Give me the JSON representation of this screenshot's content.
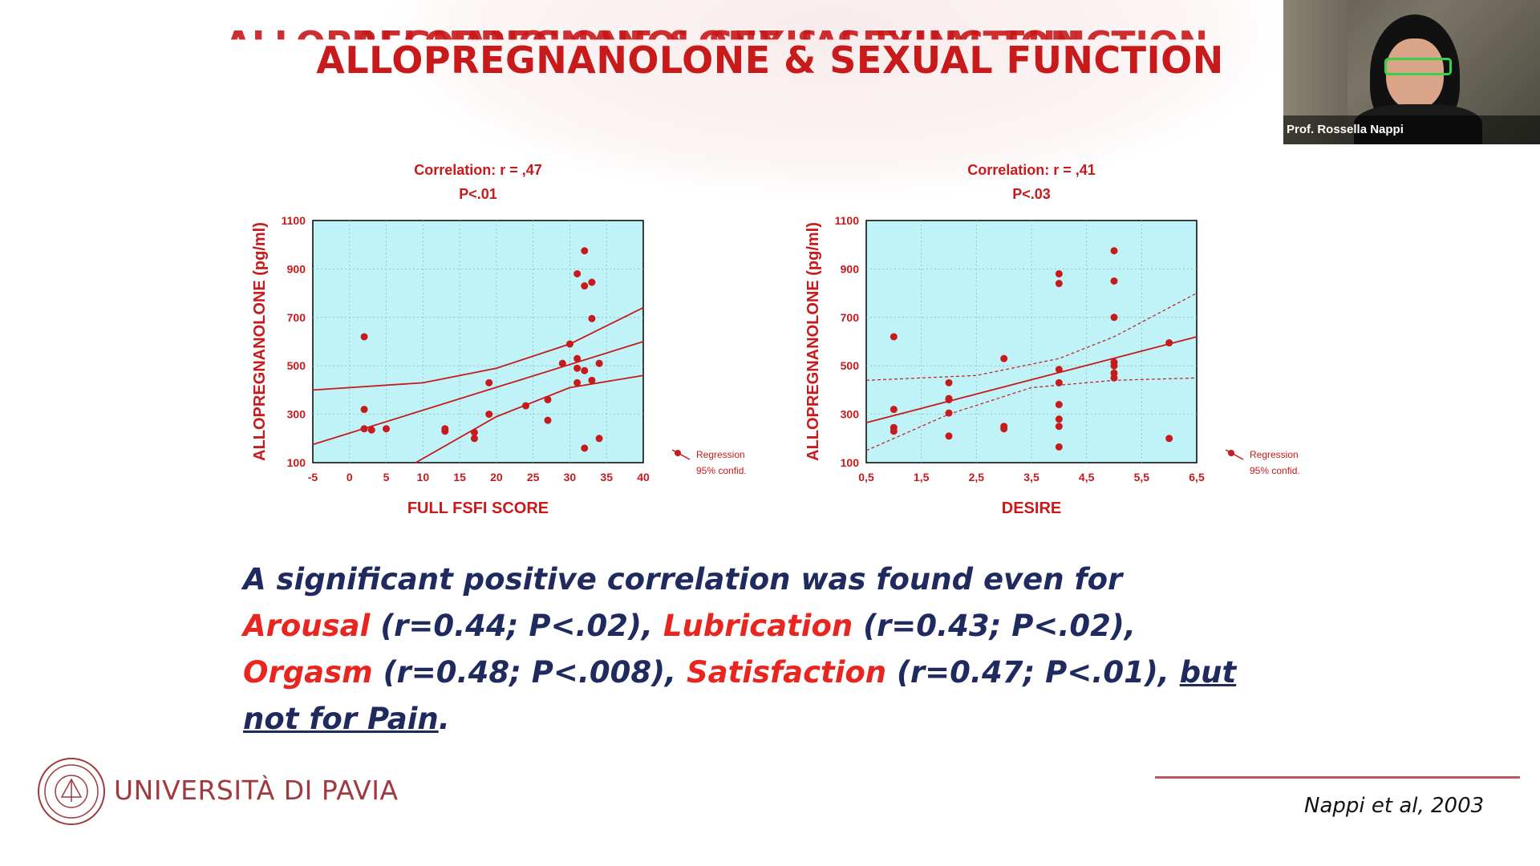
{
  "slide": {
    "title": "ALLOPREGNANOLONE & SEXUAL FUNCTION",
    "caption": {
      "p1": "A significant positive correlation was found even for ",
      "arousal": "Arousal",
      "p2": " (r=0.44; P<.02), ",
      "lubrication": "Lubrication",
      "p3": " (r=0.43; P<.02), ",
      "orgasm": "Orgasm",
      "p4": " (r=0.48; P<.008), ",
      "satisfaction": "Satisfaction",
      "p5": " (r=0.47; P<.01), ",
      "underlined": "but not for Pain",
      "p6": "."
    },
    "university": "UNIVERSITÀ DI PAVIA",
    "reference": "Nappi et al, 2003"
  },
  "video": {
    "participant_name": "Prof. Rossella Nappi"
  },
  "colors": {
    "accent": "#c8191b",
    "plot_bg": "#bff3f7",
    "caption_text": "#1f2a5e",
    "caption_highlight": "#e8251f"
  },
  "chart_data": [
    {
      "type": "scatter",
      "correlation": "Correlation: r = ,47",
      "p_value": "P<.01",
      "xlabel": "FULL FSFI SCORE",
      "ylabel": "ALLOPREGNANOLONE (pg/ml)",
      "xlim": [
        -5,
        40
      ],
      "ylim": [
        100,
        1100
      ],
      "x_ticks": [
        "-5",
        "0",
        "5",
        "10",
        "15",
        "20",
        "25",
        "30",
        "35",
        "40"
      ],
      "y_ticks": [
        "100",
        "300",
        "500",
        "700",
        "900",
        "1100"
      ],
      "legend": [
        "Regression",
        "95% confid."
      ],
      "band_style": "solid",
      "points": [
        [
          2,
          620
        ],
        [
          2,
          320
        ],
        [
          2,
          240
        ],
        [
          3,
          235
        ],
        [
          5,
          240
        ],
        [
          13,
          240
        ],
        [
          13,
          230
        ],
        [
          17,
          225
        ],
        [
          17,
          200
        ],
        [
          19,
          430
        ],
        [
          19,
          300
        ],
        [
          24,
          335
        ],
        [
          27,
          360
        ],
        [
          27,
          275
        ],
        [
          29,
          510
        ],
        [
          30,
          590
        ],
        [
          31,
          880
        ],
        [
          31,
          530
        ],
        [
          31,
          490
        ],
        [
          31,
          430
        ],
        [
          32,
          975
        ],
        [
          32,
          830
        ],
        [
          32,
          480
        ],
        [
          32,
          160
        ],
        [
          33,
          845
        ],
        [
          33,
          695
        ],
        [
          33,
          440
        ],
        [
          34,
          510
        ],
        [
          34,
          200
        ]
      ],
      "regression": [
        [
          -5,
          175
        ],
        [
          40,
          600
        ]
      ],
      "upper_band": [
        [
          -5,
          400
        ],
        [
          10,
          430
        ],
        [
          20,
          490
        ],
        [
          30,
          590
        ],
        [
          40,
          740
        ]
      ],
      "lower_band": [
        [
          9,
          100
        ],
        [
          20,
          290
        ],
        [
          30,
          410
        ],
        [
          40,
          460
        ]
      ]
    },
    {
      "type": "scatter",
      "correlation": "Correlation: r = ,41",
      "p_value": "P<.03",
      "xlabel": "DESIRE",
      "ylabel": "ALLOPREGNANOLONE (pg/ml)",
      "xlim": [
        0.5,
        6.5
      ],
      "ylim": [
        100,
        1100
      ],
      "x_ticks": [
        "0,5",
        "1,5",
        "2,5",
        "3,5",
        "4,5",
        "5,5",
        "6,5"
      ],
      "y_ticks": [
        "100",
        "300",
        "500",
        "700",
        "900",
        "1100"
      ],
      "legend": [
        "Regression",
        "95% confid."
      ],
      "band_style": "dashed",
      "points": [
        [
          1,
          620
        ],
        [
          1,
          320
        ],
        [
          1,
          245
        ],
        [
          1,
          230
        ],
        [
          2,
          430
        ],
        [
          2,
          365
        ],
        [
          2,
          360
        ],
        [
          2,
          305
        ],
        [
          2,
          210
        ],
        [
          3,
          530
        ],
        [
          3,
          250
        ],
        [
          3,
          240
        ],
        [
          4,
          880
        ],
        [
          4,
          840
        ],
        [
          4,
          485
        ],
        [
          4,
          430
        ],
        [
          4,
          340
        ],
        [
          4,
          280
        ],
        [
          4,
          250
        ],
        [
          4,
          165
        ],
        [
          5,
          975
        ],
        [
          5,
          850
        ],
        [
          5,
          700
        ],
        [
          5,
          515
        ],
        [
          5,
          500
        ],
        [
          5,
          470
        ],
        [
          5,
          450
        ],
        [
          6,
          595
        ],
        [
          6,
          200
        ]
      ],
      "regression": [
        [
          0.5,
          265
        ],
        [
          6.5,
          620
        ]
      ],
      "upper_band": [
        [
          0.5,
          440
        ],
        [
          2.5,
          460
        ],
        [
          4,
          530
        ],
        [
          5,
          620
        ],
        [
          6.5,
          800
        ]
      ],
      "lower_band": [
        [
          0.5,
          150
        ],
        [
          2,
          300
        ],
        [
          3.5,
          410
        ],
        [
          5,
          440
        ],
        [
          6.5,
          450
        ]
      ]
    }
  ]
}
